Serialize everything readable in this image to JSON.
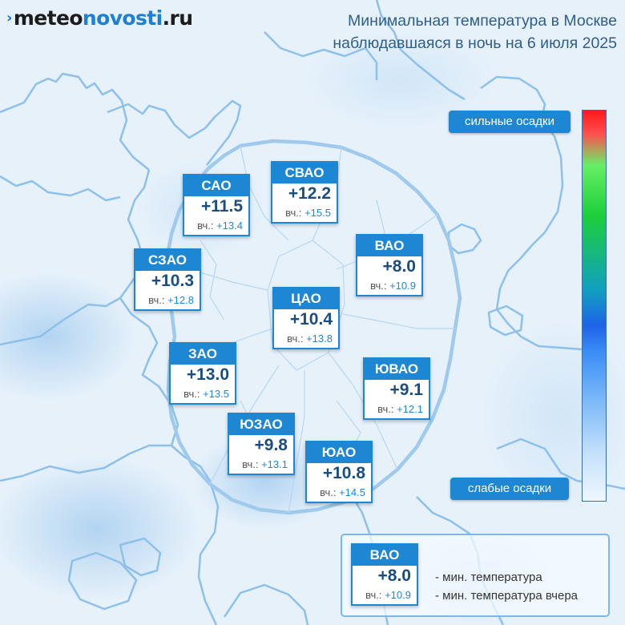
{
  "brand": {
    "part1": "meteo",
    "part2": "novosti",
    "part3": ".ru"
  },
  "title": {
    "line1": "Минимальная температура в Москве",
    "line2": "наблюдавшаяся в ночь на 6 июля 2025"
  },
  "precip_scale": {
    "top_label": "сильные осадки",
    "bottom_label": "слабые осадки",
    "colors_top_to_bottom": [
      "#ff1a1a",
      "#66ee66",
      "#1ccf3a",
      "#11a0c0",
      "#1e63e8",
      "#7ab8f7",
      "#eef7ff"
    ]
  },
  "districts": [
    {
      "name": "САО",
      "temp": "+11.5",
      "yest_label": "вч.:",
      "yest": "+13.4"
    },
    {
      "name": "СВАО",
      "temp": "+12.2",
      "yest_label": "вч.:",
      "yest": "+15.5"
    },
    {
      "name": "ВАО",
      "temp": "+8.0",
      "yest_label": "вч.:",
      "yest": "+10.9"
    },
    {
      "name": "СЗАО",
      "temp": "+10.3",
      "yest_label": "вч.:",
      "yest": "+12.8"
    },
    {
      "name": "ЦАО",
      "temp": "+10.4",
      "yest_label": "вч.:",
      "yest": "+13.8"
    },
    {
      "name": "ЗАО",
      "temp": "+13.0",
      "yest_label": "вч.:",
      "yest": "+13.5"
    },
    {
      "name": "ЮВАО",
      "temp": "+9.1",
      "yest_label": "вч.:",
      "yest": "+12.1"
    },
    {
      "name": "ЮЗАО",
      "temp": "+9.8",
      "yest_label": "вч.:",
      "yest": "+13.1"
    },
    {
      "name": "ЮАО",
      "temp": "+10.8",
      "yest_label": "вч.:",
      "yest": "+14.5"
    }
  ],
  "legend": {
    "sample": {
      "name": "ВАО",
      "temp": "+8.0",
      "yest_label": "вч.:",
      "yest": "+10.9"
    },
    "line1": "- мин. температура",
    "line2": "- мин. температура вчера"
  },
  "colors": {
    "accent": "#1d87d4",
    "map_background": "#e6f1fa",
    "boundary": "#8dc0ea",
    "value_text": "#1a4e80"
  }
}
